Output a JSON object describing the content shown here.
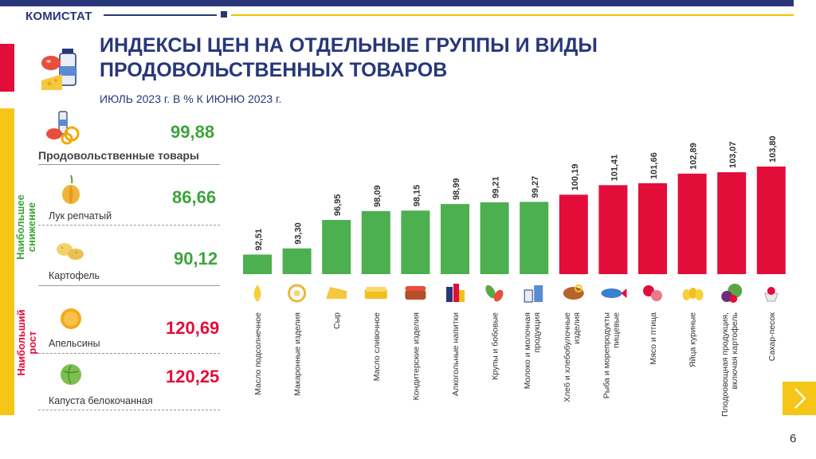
{
  "header": {
    "brand": "КОМИСТАТ",
    "title": "ИНДЕКСЫ ЦЕН НА ОТДЕЛЬНЫЕ ГРУППЫ И ВИДЫ ПРОДОВОЛЬСТВЕННЫХ ТОВАРОВ",
    "subtitle": "ИЮЛЬ 2023 г. В % К ИЮНЮ 2023 г.",
    "accent_navy": "#283779",
    "accent_yellow": "#f5c518",
    "accent_red": "#e30d3a"
  },
  "summary": {
    "food": {
      "label": "Продовольственные товары",
      "value": "99,88",
      "icon": "grocery-icon"
    },
    "decline_title": "Наибольшее снижение",
    "decline": [
      {
        "label": "Лук репчатый",
        "value": "86,66",
        "icon": "onion-icon"
      },
      {
        "label": "Картофель",
        "value": "90,12",
        "icon": "potato-icon"
      }
    ],
    "growth_title": "Наибольший рост",
    "growth": [
      {
        "label": "Апельсины",
        "value": "120,69",
        "icon": "orange-icon"
      },
      {
        "label": "Капуста белокочанная",
        "value": "120,25",
        "icon": "cabbage-icon"
      }
    ]
  },
  "chart_data": {
    "type": "bar",
    "categories": [
      "Масло подсолнечное",
      "Макаронные изделия",
      "Сыр",
      "Масло сливочное",
      "Кондитерские изделия",
      "Алкогольные напитки",
      "Крупы и бобовые",
      "Молоко и молочная продукция",
      "Хлеб и хлебобулочные изделия",
      "Рыба и морепродукты пищевые",
      "Мясо и птица",
      "Яйца куриные",
      "Плодоовощная продукция, включая картофель",
      "Сахар-песок"
    ],
    "category_lines": [
      [
        "Масло подсолнечное"
      ],
      [
        "Макаронные изделия"
      ],
      [
        "Сыр"
      ],
      [
        "Масло сливочное"
      ],
      [
        "Кондитерские изделия"
      ],
      [
        "Алкогольные напитки"
      ],
      [
        "Крупы и бобовые"
      ],
      [
        "Молоко и молочная",
        "продукция"
      ],
      [
        "Хлеб и хлебобулочные",
        "изделия"
      ],
      [
        "Рыба и морепродукты",
        "пищевые"
      ],
      [
        "Мясо и птица"
      ],
      [
        "Яйца куриные"
      ],
      [
        "Плодоовощная продукция,",
        "включая картофель"
      ],
      [
        "Сахар-песок"
      ]
    ],
    "values": [
      92.51,
      93.3,
      96.95,
      98.09,
      98.15,
      98.99,
      99.21,
      99.27,
      100.19,
      101.41,
      101.66,
      102.89,
      103.07,
      103.8
    ],
    "value_labels": [
      "92,51",
      "93,30",
      "96,95",
      "98,09",
      "98,15",
      "98,99",
      "99,21",
      "99,27",
      "100,19",
      "101,41",
      "101,66",
      "102,89",
      "103,07",
      "103,80"
    ],
    "icons": [
      "oil-icon",
      "pasta-icon",
      "cheese-icon",
      "butter-icon",
      "cake-icon",
      "bottles-icon",
      "beans-icon",
      "milk-icon",
      "bread-icon",
      "fish-icon",
      "meat-icon",
      "eggs-icon",
      "vegetables-icon",
      "sugar-icon"
    ],
    "threshold": 100,
    "colors": {
      "below": "#4caf50",
      "above": "#e30d3a"
    },
    "title": "",
    "xlabel": "",
    "ylabel": "",
    "ylim": [
      90,
      104
    ]
  },
  "footer": {
    "page": "6"
  }
}
